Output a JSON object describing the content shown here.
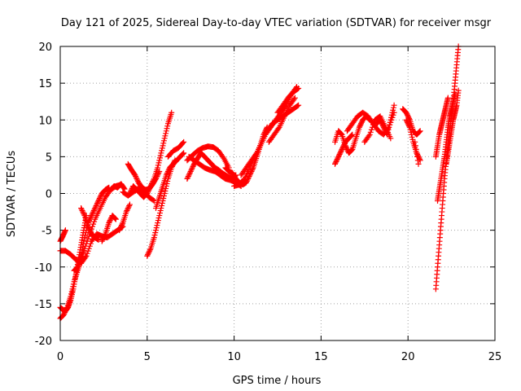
{
  "chart_data": {
    "type": "scatter",
    "title": "Day 121 of 2025, Sidereal Day-to-day VTEC variation (SDTVAR) for receiver msgr",
    "xlabel": "GPS time / hours",
    "ylabel": "SDTVAR / TECUs",
    "xlim": [
      0,
      25
    ],
    "ylim": [
      -20,
      20
    ],
    "xticks": [
      "0",
      "5",
      "10",
      "15",
      "20",
      "25"
    ],
    "yticks": [
      "-20",
      "-15",
      "-10",
      "-5",
      "0",
      "5",
      "10",
      "15",
      "20"
    ],
    "grid": true,
    "marker": "plus",
    "color": "#ff0000",
    "segments": [
      {
        "x": [
          0.0,
          0.2,
          0.4,
          0.6,
          0.8,
          1.0,
          1.2,
          1.4,
          1.7,
          2.0,
          2.3,
          2.6,
          2.9,
          3.2,
          3.5
        ],
        "y": [
          -17.0,
          -16.5,
          -15.5,
          -14.0,
          -12.0,
          -10.5,
          -9.0,
          -7.5,
          -5.5,
          -3.5,
          -2.0,
          -0.5,
          0.5,
          1.0,
          1.2
        ]
      },
      {
        "x": [
          0.0,
          0.15,
          0.3,
          0.45,
          0.6,
          0.75,
          0.9,
          1.05,
          1.2,
          1.35,
          1.5
        ],
        "y": [
          -15.5,
          -15.8,
          -16.0,
          -15.5,
          -14.5,
          -13.0,
          -11.0,
          -9.0,
          -7.0,
          -5.0,
          -3.0
        ]
      },
      {
        "x": [
          0.0,
          0.15,
          0.3
        ],
        "y": [
          -6.5,
          -5.8,
          -5.0
        ]
      },
      {
        "x": [
          0.0,
          0.3,
          0.6,
          0.9,
          1.2,
          1.5,
          1.8,
          2.1,
          2.4,
          2.7,
          3.0,
          3.3,
          3.6
        ],
        "y": [
          -7.8,
          -7.8,
          -8.3,
          -9.0,
          -9.5,
          -8.5,
          -6.5,
          -5.5,
          -5.8,
          -6.0,
          -5.5,
          -5.0,
          -4.5
        ]
      },
      {
        "x": [
          0.8,
          1.0,
          1.2,
          1.4,
          1.6,
          1.8,
          2.0,
          2.2,
          2.4,
          2.6,
          2.8
        ],
        "y": [
          -10.5,
          -10.0,
          -8.5,
          -6.0,
          -4.0,
          -3.0,
          -2.0,
          -1.0,
          0.0,
          0.5,
          0.8
        ]
      },
      {
        "x": [
          1.2,
          1.4,
          1.6,
          1.8,
          2.0,
          2.2
        ],
        "y": [
          -2.0,
          -3.0,
          -4.5,
          -5.5,
          -6.0,
          -6.3
        ]
      },
      {
        "x": [
          2.4,
          2.6,
          2.8,
          3.0,
          3.2
        ],
        "y": [
          -6.5,
          -5.5,
          -4.0,
          -3.0,
          -3.5
        ]
      },
      {
        "x": [
          3.4,
          3.6,
          3.8,
          4.0
        ],
        "y": [
          -5.0,
          -4.0,
          -2.5,
          -1.5
        ]
      },
      {
        "x": [
          2.9,
          3.1,
          3.3,
          3.5,
          3.7
        ],
        "y": [
          0.5,
          1.0,
          0.8,
          1.3,
          0.6
        ]
      },
      {
        "x": [
          3.9,
          4.1,
          4.3,
          4.5,
          4.7,
          4.9,
          5.1,
          5.3,
          5.5,
          5.7
        ],
        "y": [
          4.0,
          3.2,
          2.5,
          1.5,
          0.8,
          0.5,
          0.6,
          1.2,
          2.0,
          3.0
        ]
      },
      {
        "x": [
          4.0,
          4.2,
          4.4,
          4.6,
          4.8,
          5.0,
          5.2,
          5.4,
          5.6,
          5.8,
          6.0,
          6.2,
          6.4
        ],
        "y": [
          0.0,
          1.0,
          0.5,
          0.0,
          -0.5,
          0.0,
          1.0,
          2.0,
          3.5,
          5.5,
          7.5,
          9.5,
          11.0
        ]
      },
      {
        "x": [
          3.6,
          3.9,
          4.2,
          4.5,
          4.8,
          5.1,
          5.4
        ],
        "y": [
          0.2,
          -0.3,
          0.2,
          0.7,
          0.3,
          -0.5,
          -1.0
        ]
      },
      {
        "x": [
          5.0,
          5.2,
          5.4,
          5.6,
          5.8,
          6.0,
          6.2,
          6.4,
          6.6
        ],
        "y": [
          -8.5,
          -7.5,
          -6.0,
          -4.0,
          -2.0,
          0.0,
          2.0,
          3.5,
          4.5
        ]
      },
      {
        "x": [
          5.5,
          5.7,
          5.9,
          6.1,
          6.3,
          6.5,
          6.7,
          6.9,
          7.1
        ],
        "y": [
          -2.0,
          -0.5,
          1.0,
          2.5,
          3.5,
          4.0,
          4.5,
          5.0,
          5.5
        ]
      },
      {
        "x": [
          6.2,
          6.5,
          6.8,
          7.1
        ],
        "y": [
          5.0,
          5.8,
          6.2,
          7.0
        ]
      },
      {
        "x": [
          7.3,
          7.5,
          7.7,
          7.9,
          8.1,
          8.3,
          8.5,
          8.7,
          8.9,
          9.1,
          9.3,
          9.5,
          9.7,
          9.9,
          10.1
        ],
        "y": [
          2.0,
          3.0,
          4.0,
          4.8,
          5.5,
          5.0,
          4.5,
          4.0,
          3.5,
          3.2,
          2.8,
          2.5,
          2.2,
          2.0,
          2.5
        ]
      },
      {
        "x": [
          7.3,
          7.6,
          7.9,
          8.2,
          8.5,
          8.8,
          9.1,
          9.4,
          9.7
        ],
        "y": [
          4.5,
          5.2,
          5.8,
          6.2,
          6.4,
          6.3,
          5.8,
          4.8,
          3.5
        ]
      },
      {
        "x": [
          7.4,
          7.7,
          8.0,
          8.3,
          8.6,
          8.9,
          9.2,
          9.5,
          9.8,
          10.1,
          10.4
        ],
        "y": [
          5.0,
          4.5,
          4.0,
          3.5,
          3.2,
          3.0,
          2.5,
          2.0,
          1.8,
          1.5,
          1.0
        ]
      },
      {
        "x": [
          9.5,
          9.7,
          9.9,
          10.1,
          10.3,
          10.5,
          10.7,
          10.9,
          11.1,
          11.3,
          11.5,
          11.7,
          11.9
        ],
        "y": [
          3.5,
          3.0,
          2.8,
          2.0,
          1.5,
          1.2,
          1.5,
          2.5,
          3.5,
          5.0,
          6.5,
          8.0,
          9.0
        ]
      },
      {
        "x": [
          10.0,
          10.3,
          10.6,
          10.9,
          11.2,
          11.5,
          11.8,
          12.1,
          12.4,
          12.7,
          13.0,
          13.3,
          13.6
        ],
        "y": [
          1.0,
          1.2,
          2.0,
          3.5,
          5.0,
          6.5,
          8.0,
          9.0,
          10.0,
          11.0,
          12.0,
          13.5,
          14.5
        ]
      },
      {
        "x": [
          10.4,
          10.7,
          11.0,
          11.3,
          11.6,
          11.9,
          12.2,
          12.5,
          12.8,
          13.1,
          13.4,
          13.7
        ],
        "y": [
          2.5,
          3.5,
          4.5,
          5.5,
          7.0,
          8.5,
          9.5,
          10.0,
          10.5,
          11.0,
          11.5,
          12.0
        ]
      },
      {
        "x": [
          12.0,
          12.3,
          12.6,
          12.9,
          13.2,
          13.5
        ],
        "y": [
          7.0,
          8.0,
          9.0,
          10.5,
          12.0,
          13.0
        ]
      },
      {
        "x": [
          12.5,
          12.8,
          13.1,
          13.4,
          13.7
        ],
        "y": [
          11.0,
          12.0,
          13.0,
          13.8,
          14.3
        ]
      },
      {
        "x": [
          15.8,
          16.0,
          16.2,
          16.4,
          16.6,
          16.8
        ],
        "y": [
          4.0,
          5.0,
          6.0,
          7.0,
          7.5,
          8.0
        ]
      },
      {
        "x": [
          15.8,
          16.0,
          16.2,
          16.4,
          16.6,
          16.8,
          17.0,
          17.2,
          17.4,
          17.6,
          17.8
        ],
        "y": [
          7.0,
          8.5,
          8.0,
          6.5,
          5.5,
          6.0,
          7.5,
          9.0,
          10.0,
          10.5,
          10.0
        ]
      },
      {
        "x": [
          16.5,
          16.8,
          17.1,
          17.4,
          17.7,
          18.0,
          18.3,
          18.6,
          18.9,
          19.2
        ],
        "y": [
          8.5,
          9.5,
          10.5,
          11.0,
          10.5,
          9.5,
          8.5,
          8.0,
          9.0,
          11.0
        ]
      },
      {
        "x": [
          17.5,
          17.8,
          18.1,
          18.4,
          18.7,
          19.0
        ],
        "y": [
          7.0,
          8.0,
          10.0,
          10.5,
          9.0,
          7.5
        ]
      },
      {
        "x": [
          18.2,
          18.4,
          18.6,
          18.8,
          19.0,
          19.2
        ],
        "y": [
          9.5,
          10.0,
          9.0,
          8.0,
          10.0,
          12.0
        ]
      },
      {
        "x": [
          19.7,
          19.9,
          20.1,
          20.3,
          20.5,
          20.7
        ],
        "y": [
          11.5,
          11.0,
          10.0,
          8.5,
          8.0,
          8.5
        ]
      },
      {
        "x": [
          19.9,
          20.1,
          20.3,
          20.5,
          20.7
        ],
        "y": [
          10.0,
          9.0,
          7.0,
          5.5,
          4.5
        ]
      },
      {
        "x": [
          20.4,
          20.6
        ],
        "y": [
          7.0,
          4.0
        ]
      },
      {
        "x": [
          21.6,
          21.7,
          21.8,
          21.9,
          22.0,
          22.1,
          22.2,
          22.3,
          22.4,
          22.5,
          22.6,
          22.7,
          22.8,
          22.9
        ],
        "y": [
          -13.0,
          -10.0,
          -7.0,
          -4.0,
          -1.0,
          2.0,
          4.5,
          6.5,
          8.5,
          10.5,
          12.5,
          15.0,
          17.5,
          20.0
        ]
      },
      {
        "x": [
          21.6,
          21.7,
          21.8,
          21.9,
          22.0,
          22.1,
          22.2,
          22.3
        ],
        "y": [
          5.0,
          6.5,
          8.0,
          9.0,
          10.0,
          11.0,
          12.0,
          13.0
        ]
      },
      {
        "x": [
          21.7,
          21.8,
          21.9,
          22.0,
          22.1,
          22.2,
          22.3,
          22.4,
          22.5,
          22.6,
          22.7
        ],
        "y": [
          -1.0,
          0.5,
          2.0,
          3.5,
          5.0,
          7.0,
          9.0,
          10.5,
          11.5,
          12.5,
          13.5
        ]
      },
      {
        "x": [
          22.2,
          22.3,
          22.4,
          22.5,
          22.6,
          22.7,
          22.8,
          22.9
        ],
        "y": [
          4.0,
          5.5,
          7.0,
          8.5,
          10.0,
          11.0,
          12.0,
          14.0
        ]
      }
    ]
  }
}
